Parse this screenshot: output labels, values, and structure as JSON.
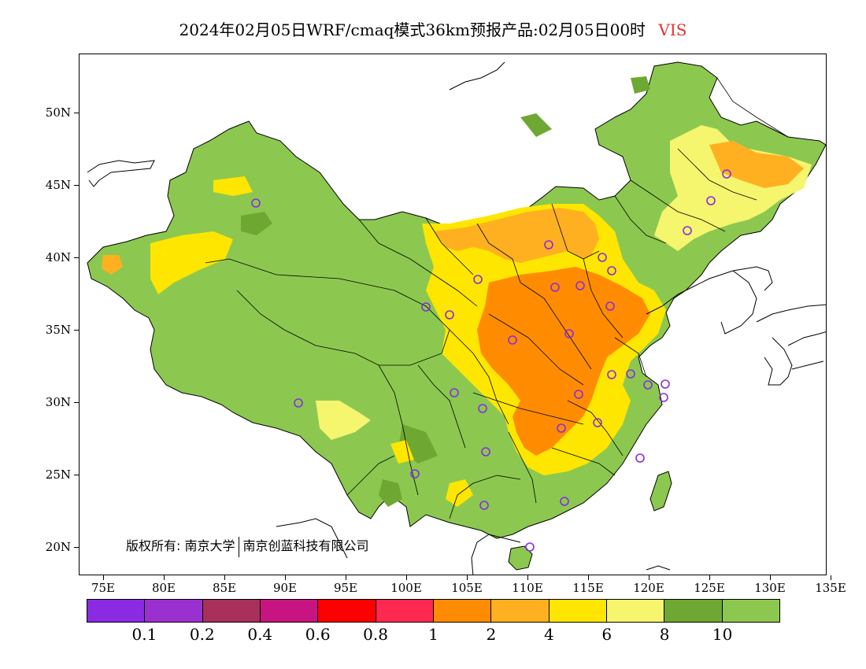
{
  "title": {
    "main": "2024年02月05日WRF/cmaq模式36km预报产品:02月05日00时",
    "variable": "VIS",
    "variable_color": "#e8302a"
  },
  "axes": {
    "lat_labels": [
      "50N",
      "45N",
      "40N",
      "35N",
      "30N",
      "25N",
      "20N"
    ],
    "lon_labels": [
      "75E",
      "80E",
      "85E",
      "90E",
      "95E",
      "100E",
      "105E",
      "110E",
      "115E",
      "120E",
      "125E",
      "130E",
      "135E"
    ]
  },
  "copyright": {
    "prefix": "版权所有:",
    "org1": "南京大学",
    "org2": "南京创蓝科技有限公司"
  },
  "legend": {
    "colors": [
      "#8a2be2",
      "#9b30d0",
      "#a8305a",
      "#c81480",
      "#ff0000",
      "#ff2850",
      "#ff8c00",
      "#ffb020",
      "#ffe600",
      "#f5f56e",
      "#6ea832",
      "#8cc850"
    ],
    "labels": [
      "0.1",
      "0.2",
      "0.4",
      "0.6",
      "0.8",
      "1",
      "2",
      "4",
      "6",
      "8",
      "10"
    ]
  },
  "map": {
    "land_color": "#8cc850",
    "dark_green": "#6ea832",
    "station_color": "#8a2be2"
  }
}
